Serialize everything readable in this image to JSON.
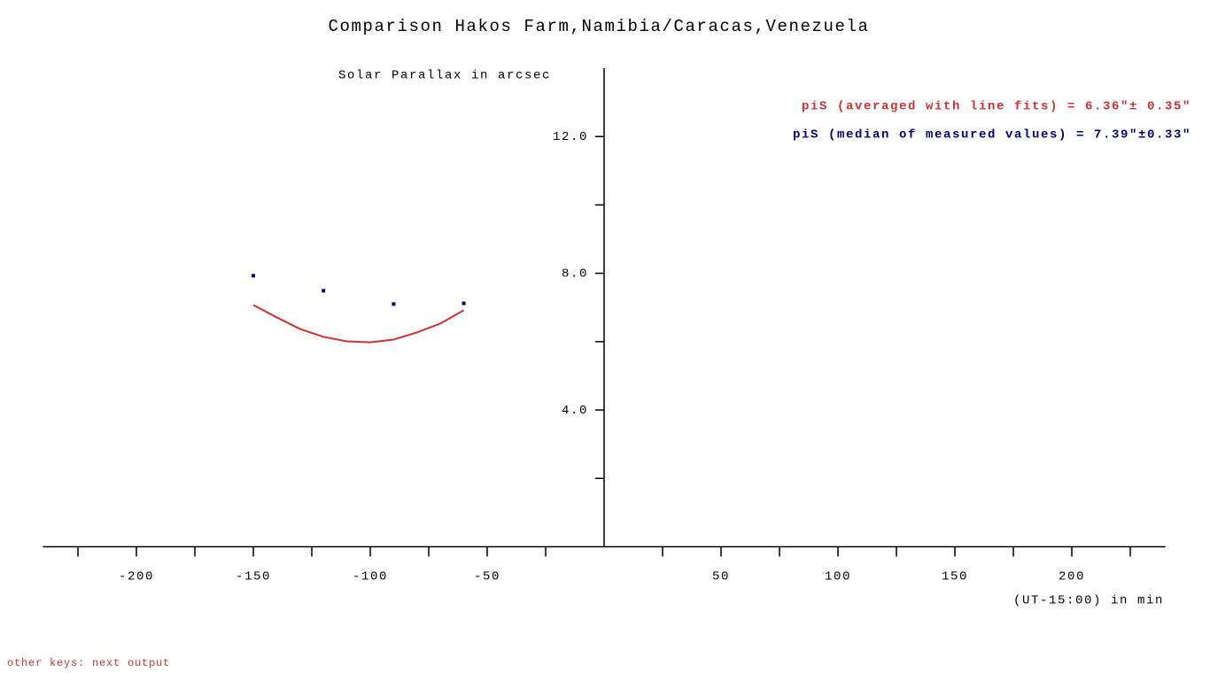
{
  "chart_data": {
    "type": "scatter",
    "title": "Comparison Hakos Farm,Namibia/Caracas,Venezuela",
    "subtitle": "Solar Parallax in arcsec",
    "x_label": "(UT-15:00) in min",
    "annotations": [
      {
        "text": "piS (averaged with line fits) = 6.36\"± 0.35\"",
        "color": "#d03030"
      },
      {
        "text": "piS (median of measured values) = 7.39\"±0.33\"",
        "color": "#000080"
      }
    ],
    "footer": "other keys: next output",
    "xlim": [
      -240,
      240
    ],
    "xticks": [
      -200,
      -150,
      -100,
      -50,
      50,
      100,
      150,
      200
    ],
    "xminorticks": [
      -225,
      -175,
      -125,
      -75,
      -25,
      25,
      75,
      125,
      175,
      225
    ],
    "ylim": [
      0,
      14
    ],
    "yticks": [
      {
        "value": 4,
        "label": "4.0"
      },
      {
        "value": 8,
        "label": "8.0"
      },
      {
        "value": 12,
        "label": "12.0"
      }
    ],
    "yminorticks": [
      2,
      6,
      10
    ],
    "points": {
      "color": "#000080",
      "x": [
        -150,
        -120,
        -90,
        -60
      ],
      "y": [
        7.93,
        7.49,
        7.1,
        7.12
      ]
    },
    "fit": {
      "color": "#d03030",
      "x": [
        -150,
        -140,
        -130,
        -120,
        -110,
        -100,
        -90,
        -80,
        -70,
        -60
      ],
      "y": [
        7.07,
        6.71,
        6.37,
        6.14,
        6.01,
        5.98,
        6.06,
        6.27,
        6.53,
        6.92
      ]
    }
  }
}
